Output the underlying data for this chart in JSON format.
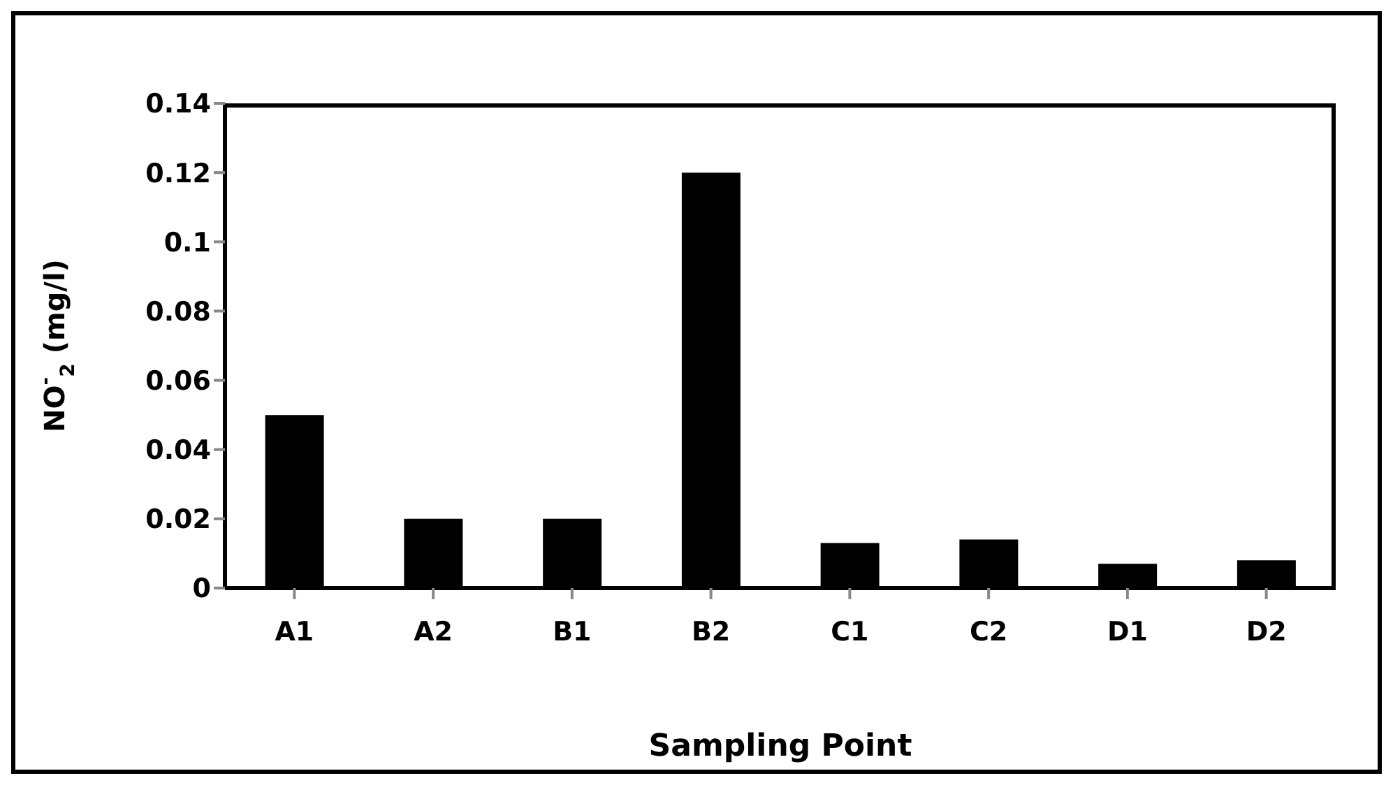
{
  "chart_data": {
    "type": "bar",
    "xlabel": "Sampling Point",
    "ylabel": "NO$^{-}$$_{2}$ (mg/l)",
    "categories": [
      "A1",
      "A2",
      "B1",
      "B2",
      "C1",
      "C2",
      "D1",
      "D2"
    ],
    "values": [
      0.05,
      0.02,
      0.02,
      0.12,
      0.013,
      0.014,
      0.007,
      0.008
    ],
    "color": "#000000",
    "ylim": [
      0,
      0.14
    ],
    "yticks": [
      0,
      0.02,
      0.04,
      0.06,
      0.08,
      0.1,
      0.12,
      0.14
    ],
    "grid": false,
    "legend": false
  }
}
